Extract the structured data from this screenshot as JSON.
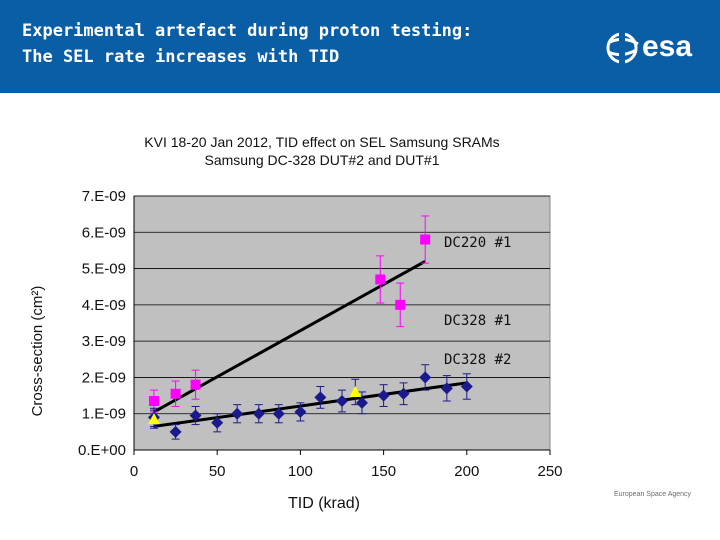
{
  "header": {
    "title_line1": "Experimental artefact during proton testing:",
    "title_line2": "The SEL rate increases with TID",
    "logo_text": "esa",
    "background_color": "#0a5ea6"
  },
  "footer": {
    "agency": "European Space Agency"
  },
  "annotations": {
    "dc220_1": "DC220 #1",
    "dc328_1": "DC328 #1",
    "dc328_2": "DC328 #2"
  },
  "chart_data": {
    "type": "scatter",
    "title": "KVI 18-20 Jan 2012, TID effect on SEL Samsung SRAMs",
    "subtitle": "Samsung DC-328 DUT#2 and DUT#1",
    "xlabel": "TID (krad)",
    "ylabel": "Cross-section (cm²)",
    "xlim": [
      0,
      250
    ],
    "ylim": [
      0,
      7e-09
    ],
    "x_ticks": [
      0,
      50,
      100,
      150,
      200,
      250
    ],
    "y_ticks": [
      0,
      1e-09,
      2e-09,
      3e-09,
      4e-09,
      5e-09,
      6e-09,
      7e-09
    ],
    "y_tick_labels": [
      "0.E+00",
      "1.E-09",
      "2.E-09",
      "3.E-09",
      "4.E-09",
      "5.E-09",
      "6.E-09",
      "7.E-09"
    ],
    "grid": true,
    "plot_background": "#c0c0c0",
    "series": [
      {
        "name": "DC220 #1",
        "marker": "square",
        "color": "#ff00ff",
        "x": [
          12,
          25,
          37,
          148,
          160,
          175
        ],
        "y": [
          1.35e-09,
          1.55e-09,
          1.8e-09,
          4.7e-09,
          4e-09,
          5.8e-09
        ],
        "err": [
          3e-10,
          3.5e-10,
          4e-10,
          6.5e-10,
          6e-10,
          6.5e-10
        ],
        "fit": {
          "x": [
            12,
            175
          ],
          "y": [
            1.05e-09,
            5.2e-09
          ]
        }
      },
      {
        "name": "DC328 #2",
        "marker": "diamond",
        "color": "#1a1a8c",
        "x": [
          12,
          25,
          37,
          50,
          62,
          75,
          87,
          100,
          112,
          125,
          137,
          150,
          162,
          175,
          188,
          200
        ],
        "y": [
          9e-10,
          5e-10,
          9.5e-10,
          7.5e-10,
          1e-09,
          1e-09,
          1e-09,
          1.05e-09,
          1.45e-09,
          1.35e-09,
          1.3e-09,
          1.5e-09,
          1.55e-09,
          2e-09,
          1.7e-09,
          1.75e-09
        ],
        "err": [
          2.5e-10,
          2e-10,
          2.5e-10,
          2.5e-10,
          2.5e-10,
          2.5e-10,
          2.5e-10,
          2.5e-10,
          3e-10,
          3e-10,
          3e-10,
          3e-10,
          3e-10,
          3.5e-10,
          3.5e-10,
          3.5e-10
        ],
        "fit": {
          "x": [
            12,
            200
          ],
          "y": [
            6.5e-10,
            1.85e-09
          ]
        }
      },
      {
        "name": "DC328 #1",
        "marker": "triangle",
        "color": "#ffff00",
        "x": [
          12,
          133
        ],
        "y": [
          8.5e-10,
          1.6e-09
        ],
        "err": [
          2.5e-10,
          3.5e-10
        ]
      }
    ]
  }
}
